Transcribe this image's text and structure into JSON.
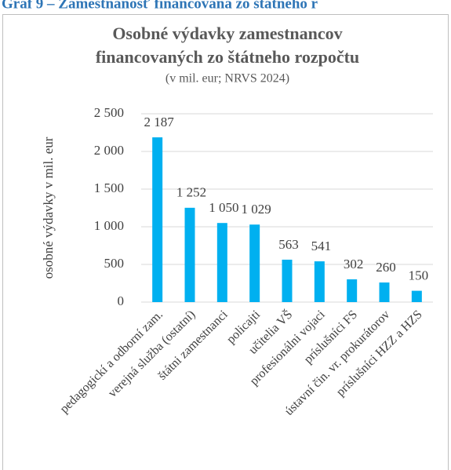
{
  "chart_data": {
    "type": "bar",
    "caption": "Graf 9 – Zamestnanosť financovaná zo štátneho r",
    "title": [
      "Osobné výdavky zamestnancov",
      "financovaných zo štátneho rozpočtu"
    ],
    "subtitle": "(v mil. eur; NRVS 2024)",
    "y_label": "osobné výdavky v mil. eur",
    "categories": [
      "pedagogickí a odborní zam.",
      "verejná služba (ostatní)",
      "štátni zamestnanci",
      "policajti",
      "učitelia VŠ",
      "profesionálni vojaci",
      "príslušníci FS",
      "ústavní čin. vr. prokurátorov",
      "príslušníci HZZ a HZS"
    ],
    "values": [
      2187,
      1252,
      1050,
      1029,
      563,
      541,
      302,
      260,
      150
    ],
    "value_labels": [
      "2 187",
      "1 252",
      "1 050",
      "1 029",
      "563",
      "541",
      "302",
      "260",
      "150"
    ],
    "color": "#00b0f0",
    "ylim": [
      0,
      2500
    ],
    "yticks": [
      0,
      500,
      {
        "value": 1000,
        "label": "1 000"
      },
      {
        "value": 1500,
        "label": "1 500"
      },
      {
        "value": 2000,
        "label": "2 000"
      },
      {
        "value": 2500,
        "label": "2 500"
      }
    ],
    "grid": true
  }
}
